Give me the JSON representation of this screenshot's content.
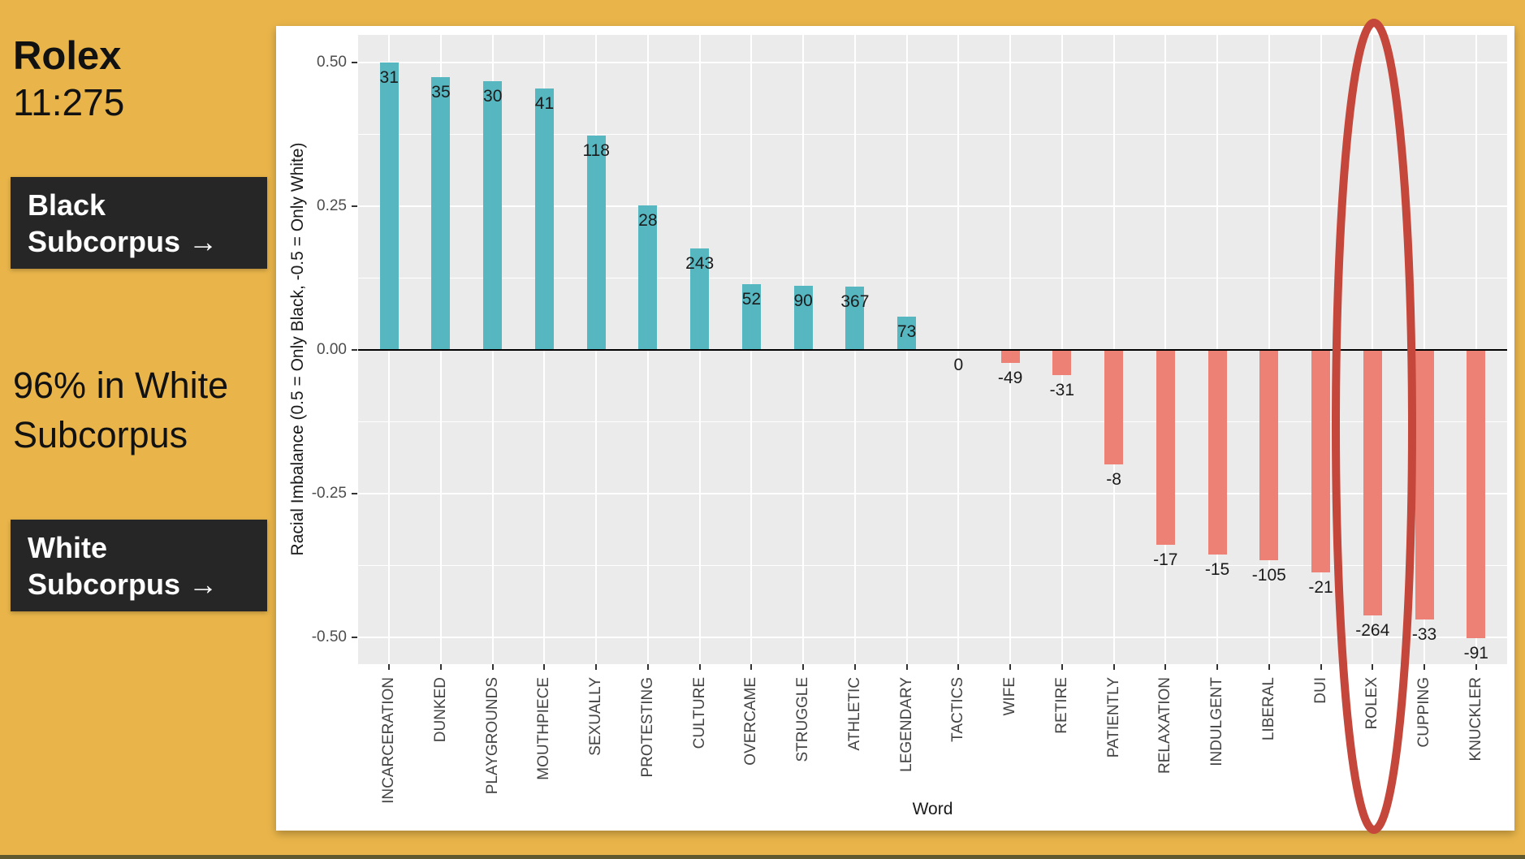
{
  "sidebar": {
    "title": "Rolex",
    "ratio": "11:275",
    "black_box": {
      "line1": "Black",
      "line2": "Subcorpus →"
    },
    "stat": {
      "line1": "96% in White",
      "line2": "Subcorpus"
    },
    "white_box": {
      "line1": "White",
      "line2": "Subcorpus →"
    }
  },
  "chart_data": {
    "type": "bar",
    "title": "",
    "xlabel": "Word",
    "ylabel": "Racial Imbalance (0.5 = Only Black, -0.5 = Only White)",
    "ylim": [
      -0.548,
      0.548
    ],
    "yticks": [
      0.5,
      0.25,
      0,
      -0.25,
      -0.5
    ],
    "ytick_labels": [
      "0.50",
      "0.25",
      "0.00",
      "-0.25",
      "-0.50"
    ],
    "yticks_minor": [
      0.375,
      0.125,
      -0.125,
      -0.375
    ],
    "grid": true,
    "legend": false,
    "categories": [
      "INCARCERATION",
      "DUNKED",
      "PLAYGROUNDS",
      "MOUTHPIECE",
      "SEXUALLY",
      "PROTESTING",
      "CULTURE",
      "OVERCAME",
      "STRUGGLE",
      "ATHLETIC",
      "LEGENDARY",
      "TACTICS",
      "WIFE",
      "RETIRE",
      "PATIENTLY",
      "RELAXATION",
      "INDULGENT",
      "LIBERAL",
      "DUI",
      "ROLEX",
      "CUPPING",
      "KNUCKLER"
    ],
    "values": [
      0.5,
      0.475,
      0.467,
      0.455,
      0.373,
      0.251,
      0.177,
      0.114,
      0.111,
      0.11,
      0.058,
      0,
      -0.023,
      -0.044,
      -0.199,
      -0.339,
      -0.356,
      -0.366,
      -0.387,
      -0.462,
      -0.469,
      -0.502
    ],
    "bar_labels": [
      "31",
      "35",
      "30",
      "41",
      "118",
      "28",
      "243",
      "52",
      "90",
      "367",
      "73",
      "0",
      "-49",
      "-31",
      "-8",
      "-17",
      "-15",
      "-105",
      "-21",
      "-264",
      "-33",
      "-91"
    ],
    "colors": {
      "positive": "#57B7C1",
      "negative": "#EE8175"
    },
    "annotation": {
      "type": "ellipse",
      "target": "ROLEX",
      "color": "#C5463A"
    }
  },
  "page_colors": {
    "background": "#E9B54A",
    "card": "#FFFFFF",
    "panel": "#EBEBEB",
    "callout_bg": "#262626"
  }
}
